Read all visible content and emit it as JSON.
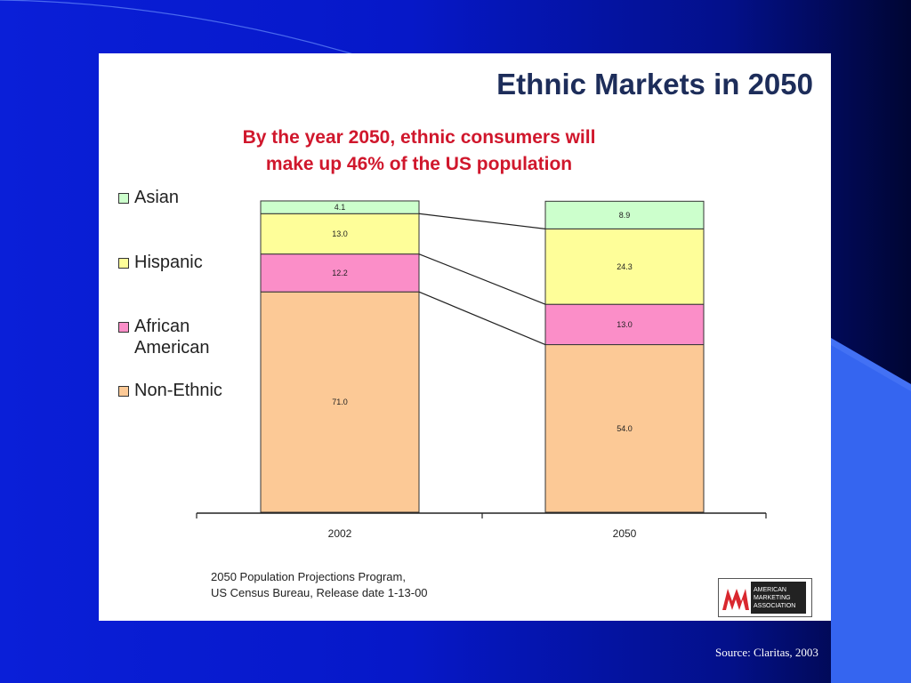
{
  "slide": {
    "source_credit": "Source: Claritas, 2003"
  },
  "figure": {
    "footnote_lines": [
      "2050 Population Projections Program,",
      "US Census Bureau, Release date 1-13-00"
    ],
    "logo_text_lines": [
      "AMERICAN",
      "MARKETING",
      "ASSOCIATION"
    ]
  },
  "colors": {
    "non_ethnic": "#fcc996",
    "african_american": "#fb8ec8",
    "hispanic": "#fefe99",
    "asian": "#ccffcc",
    "title": "#1d2d5a",
    "subtitle": "#d0172c",
    "logo_red": "#d9272e"
  },
  "legend": [
    {
      "label": "Asian",
      "color_key": "asian"
    },
    {
      "label": "Hispanic",
      "color_key": "hispanic"
    },
    {
      "label": "African\nAmerican",
      "color_key": "african_american"
    },
    {
      "label": "Non-Ethnic",
      "color_key": "non_ethnic"
    }
  ],
  "chart_data": {
    "type": "bar",
    "stacked": true,
    "title": "Ethnic Markets in 2050",
    "subtitle_lines": [
      "By the year 2050, ethnic consumers will",
      "make up 46% of the US population"
    ],
    "categories": [
      "2002",
      "2050"
    ],
    "series": [
      {
        "name": "Non-Ethnic",
        "values": [
          71.0,
          54.0
        ],
        "labels": [
          "71.0",
          "54.0"
        ]
      },
      {
        "name": "African American",
        "values": [
          12.2,
          13.0
        ],
        "labels": [
          "12.2",
          "13.0"
        ]
      },
      {
        "name": "Hispanic",
        "values": [
          13.0,
          24.3
        ],
        "labels": [
          "13.0",
          "24.3"
        ]
      },
      {
        "name": "Asian",
        "values": [
          4.1,
          8.9
        ],
        "labels": [
          "4.1",
          "8.9"
        ]
      }
    ],
    "ylim": [
      0,
      100
    ],
    "grid": false,
    "legend_position": "left",
    "connector_lines": true
  }
}
